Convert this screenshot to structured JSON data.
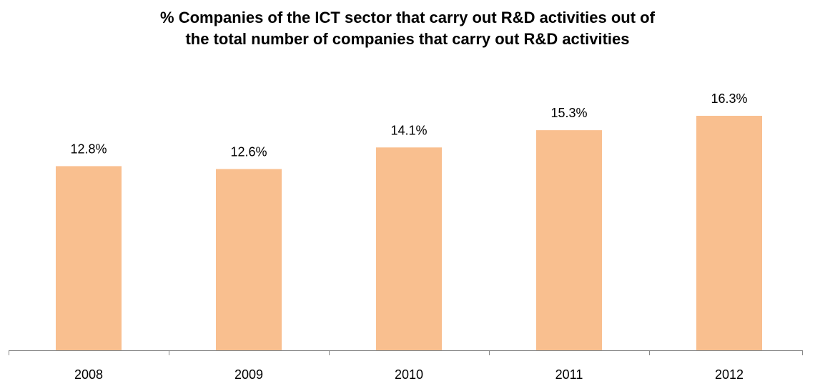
{
  "chart_data": {
    "type": "bar",
    "title": "% Companies of the ICT sector that carry out R&D activities out of the total number of companies that carry out R&D activities",
    "categories": [
      "2008",
      "2009",
      "2010",
      "2011",
      "2012"
    ],
    "values": [
      12.8,
      12.6,
      14.1,
      15.3,
      16.3
    ],
    "value_labels": [
      "12.8%",
      "12.6%",
      "14.1%",
      "15.3%",
      "16.3%"
    ],
    "color": "#f9bf8f"
  }
}
